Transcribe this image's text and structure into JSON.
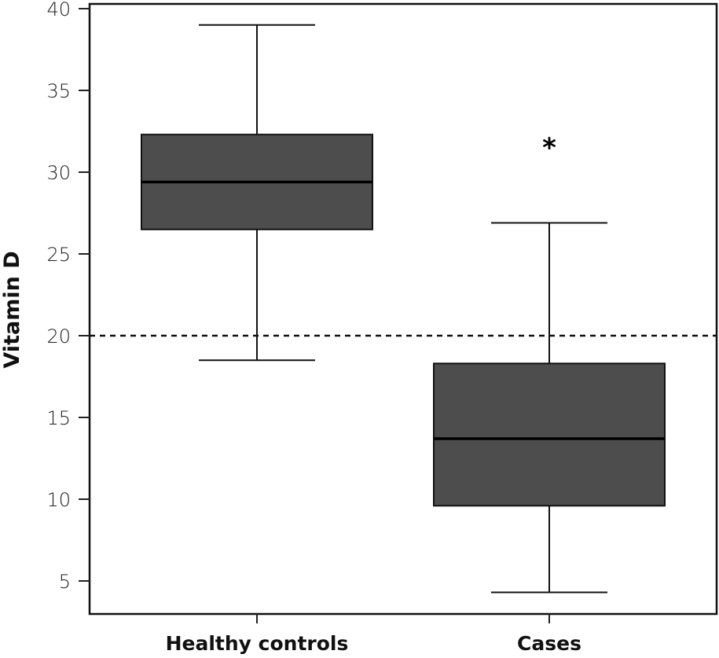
{
  "chart_data": {
    "type": "box",
    "title": "",
    "xlabel": "",
    "ylabel": "Vitamin D",
    "ylim": [
      3,
      41.4
    ],
    "yticks": [
      5,
      10,
      15,
      20,
      25,
      30,
      35,
      40
    ],
    "ytick_labels": [
      "5",
      "10",
      "15",
      "20",
      "25",
      "30",
      "35",
      "40"
    ],
    "categories": [
      "Healthy controls",
      "Cases"
    ],
    "boxes": [
      {
        "name": "Healthy controls",
        "whisker_low": 18.5,
        "q1": 26.5,
        "median": 29.4,
        "q3": 32.3,
        "whisker_high": 39.0,
        "outliers": []
      },
      {
        "name": "Cases",
        "whisker_low": 4.3,
        "q1": 9.6,
        "median": 13.7,
        "q3": 18.3,
        "whisker_high": 26.9,
        "outliers": [
          32.0
        ]
      }
    ],
    "outlier_marker": "*",
    "reference_line": {
      "value": 20,
      "style": "dashed"
    },
    "grid": false,
    "legend": "none",
    "colors": {
      "box_fill": "#4d4d4d",
      "line": "#111111",
      "background": "#ffffff"
    }
  }
}
